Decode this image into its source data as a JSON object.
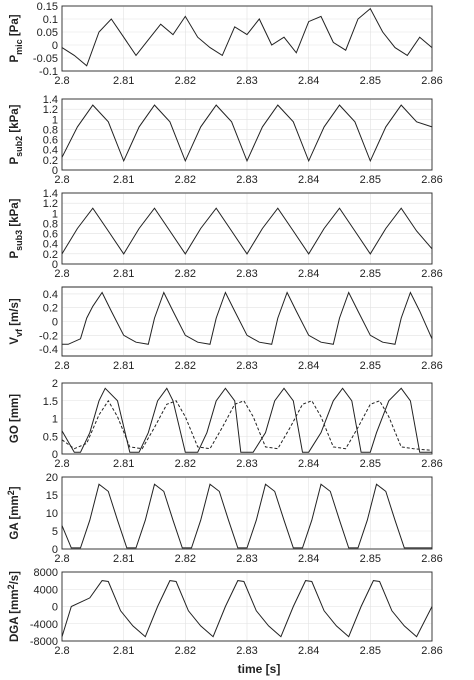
{
  "figure": {
    "xlabel": "time [s]",
    "x_ticks": [
      "2.8",
      "2.81",
      "2.82",
      "2.83",
      "2.84",
      "2.85",
      "2.86"
    ]
  },
  "chart_data": [
    {
      "type": "line",
      "ylabel_main": "P",
      "ylabel_sub": "mic",
      "ylabel_unit": " [Pa]",
      "xlim": [
        2.8,
        2.86
      ],
      "ylim": [
        -0.1,
        0.15
      ],
      "y_ticks": [
        0.15,
        0.1,
        0.05,
        0,
        -0.05,
        -0.1
      ],
      "y_tick_labels": [
        "0.15",
        "0.1",
        "0.05",
        "0",
        "-0.05",
        "-0.1"
      ],
      "grid": true,
      "series": [
        {
          "style": "solid",
          "x": [
            2.8,
            2.802,
            2.804,
            2.806,
            2.808,
            2.81,
            2.812,
            2.814,
            2.816,
            2.818,
            2.82,
            2.822,
            2.824,
            2.826,
            2.828,
            2.83,
            2.832,
            2.834,
            2.836,
            2.838,
            2.84,
            2.842,
            2.844,
            2.846,
            2.848,
            2.85,
            2.852,
            2.854,
            2.856,
            2.858,
            2.86
          ],
          "y": [
            -0.01,
            -0.04,
            -0.08,
            0.05,
            0.1,
            0.03,
            -0.04,
            0.02,
            0.08,
            0.04,
            0.11,
            0.03,
            -0.01,
            -0.04,
            0.07,
            0.04,
            0.1,
            0.0,
            0.03,
            -0.03,
            0.09,
            0.11,
            0.01,
            -0.02,
            0.1,
            0.14,
            0.05,
            -0.01,
            -0.04,
            0.03,
            -0.01
          ]
        }
      ]
    },
    {
      "type": "line",
      "ylabel_main": "P",
      "ylabel_sub": "sub2",
      "ylabel_unit": " [kPa]",
      "xlim": [
        2.8,
        2.86
      ],
      "ylim": [
        0,
        1.4
      ],
      "y_ticks": [
        1.4,
        1.2,
        1,
        0.8,
        0.6,
        0.4,
        0.2,
        0
      ],
      "y_tick_labels": [
        "1.4",
        "1.2",
        "1",
        "0.8",
        "0.6",
        "0.4",
        "0.2",
        "0"
      ],
      "grid": true,
      "series": [
        {
          "style": "solid",
          "x": [
            2.8,
            2.8025,
            2.805,
            2.8075,
            2.81,
            2.8125,
            2.815,
            2.8175,
            2.82,
            2.8225,
            2.825,
            2.8275,
            2.83,
            2.8325,
            2.835,
            2.8375,
            2.84,
            2.8425,
            2.845,
            2.8475,
            2.85,
            2.8525,
            2.855,
            2.8575,
            2.86
          ],
          "y": [
            0.25,
            0.85,
            1.28,
            0.95,
            0.18,
            0.85,
            1.28,
            0.95,
            0.18,
            0.85,
            1.28,
            0.95,
            0.18,
            0.85,
            1.28,
            0.95,
            0.18,
            0.85,
            1.28,
            0.95,
            0.18,
            0.85,
            1.28,
            0.95,
            0.85
          ]
        }
      ]
    },
    {
      "type": "line",
      "ylabel_main": "P",
      "ylabel_sub": "sub3",
      "ylabel_unit": " [kPa]",
      "xlim": [
        2.8,
        2.86
      ],
      "ylim": [
        0,
        1.4
      ],
      "y_ticks": [
        1.4,
        1.2,
        1,
        0.8,
        0.6,
        0.4,
        0.2,
        0
      ],
      "y_tick_labels": [
        "1.4",
        "1.2",
        "1",
        "0.8",
        "0.6",
        "0.4",
        "0.2",
        "0"
      ],
      "grid": true,
      "series": [
        {
          "style": "solid",
          "x": [
            2.8,
            2.8025,
            2.805,
            2.8075,
            2.81,
            2.8125,
            2.815,
            2.8175,
            2.82,
            2.8225,
            2.825,
            2.8275,
            2.83,
            2.8325,
            2.835,
            2.8375,
            2.84,
            2.8425,
            2.845,
            2.8475,
            2.85,
            2.8525,
            2.855,
            2.8575,
            2.86
          ],
          "y": [
            0.2,
            0.7,
            1.1,
            0.65,
            0.2,
            0.7,
            1.1,
            0.65,
            0.2,
            0.7,
            1.1,
            0.65,
            0.2,
            0.7,
            1.1,
            0.65,
            0.2,
            0.7,
            1.1,
            0.65,
            0.2,
            0.7,
            1.1,
            0.65,
            0.3
          ]
        }
      ]
    },
    {
      "type": "line",
      "ylabel_main": "V",
      "ylabel_sub": "vf",
      "ylabel_unit": " [m/s]",
      "xlim": [
        2.8,
        2.86
      ],
      "ylim": [
        -0.5,
        0.5
      ],
      "y_ticks": [
        0.4,
        0.2,
        0,
        -0.2,
        -0.4
      ],
      "y_tick_labels": [
        "0.4",
        "0.2",
        "0",
        "-0.2",
        "-0.4"
      ],
      "grid": true,
      "series": [
        {
          "style": "solid",
          "x": [
            2.8,
            2.801,
            2.803,
            2.804,
            2.805,
            2.8065,
            2.808,
            2.81,
            2.812,
            2.814,
            2.815,
            2.8165,
            2.818,
            2.82,
            2.822,
            2.824,
            2.825,
            2.8265,
            2.828,
            2.83,
            2.832,
            2.834,
            2.835,
            2.8365,
            2.838,
            2.84,
            2.842,
            2.844,
            2.845,
            2.8465,
            2.848,
            2.85,
            2.852,
            2.854,
            2.855,
            2.8565,
            2.858,
            2.86
          ],
          "y": [
            -0.33,
            -0.33,
            -0.25,
            0.05,
            0.22,
            0.42,
            0.15,
            -0.2,
            -0.3,
            -0.33,
            0.05,
            0.42,
            0.15,
            -0.2,
            -0.3,
            -0.33,
            0.05,
            0.42,
            0.15,
            -0.2,
            -0.3,
            -0.33,
            0.05,
            0.42,
            0.15,
            -0.2,
            -0.3,
            -0.33,
            0.05,
            0.42,
            0.15,
            -0.2,
            -0.3,
            -0.33,
            0.05,
            0.42,
            0.15,
            -0.25
          ]
        }
      ]
    },
    {
      "type": "line",
      "ylabel_main": "GO [mm]",
      "ylabel_sub": "",
      "ylabel_unit": "",
      "xlim": [
        2.8,
        2.86
      ],
      "ylim": [
        0,
        2
      ],
      "y_ticks": [
        2,
        1.5,
        1,
        0.5,
        0
      ],
      "y_tick_labels": [
        "2",
        "1.5",
        "1",
        "0.5",
        "0"
      ],
      "grid": true,
      "series": [
        {
          "style": "solid",
          "x": [
            2.8,
            2.802,
            2.803,
            2.8045,
            2.806,
            2.807,
            2.809,
            2.811,
            2.8125,
            2.814,
            2.8155,
            2.817,
            2.818,
            2.82,
            2.822,
            2.8235,
            2.825,
            2.8265,
            2.828,
            2.829,
            2.831,
            2.833,
            2.8345,
            2.836,
            2.8375,
            2.839,
            2.84,
            2.842,
            2.844,
            2.8455,
            2.847,
            2.8485,
            2.85,
            2.851,
            2.853,
            2.855,
            2.8565,
            2.858,
            2.86
          ],
          "y": [
            0.65,
            0.05,
            0.05,
            0.6,
            1.5,
            1.85,
            1.5,
            0.05,
            0.05,
            0.6,
            1.5,
            1.85,
            1.5,
            0.05,
            0.05,
            0.6,
            1.5,
            1.85,
            1.5,
            0.05,
            0.05,
            0.6,
            1.5,
            1.85,
            1.5,
            0.05,
            0.05,
            0.6,
            1.5,
            1.85,
            1.5,
            0.05,
            0.05,
            0.6,
            1.5,
            1.85,
            1.5,
            0.05,
            0.05
          ]
        },
        {
          "style": "dashed",
          "x": [
            2.8,
            2.802,
            2.804,
            2.806,
            2.8075,
            2.809,
            2.811,
            2.813,
            2.815,
            2.817,
            2.8185,
            2.82,
            2.822,
            2.824,
            2.826,
            2.828,
            2.8295,
            2.831,
            2.833,
            2.835,
            2.837,
            2.839,
            2.8405,
            2.842,
            2.844,
            2.846,
            2.848,
            2.85,
            2.8515,
            2.853,
            2.855,
            2.857,
            2.86
          ],
          "y": [
            0.4,
            0.15,
            0.3,
            1.1,
            1.5,
            1.05,
            0.2,
            0.15,
            0.75,
            1.4,
            1.5,
            1.05,
            0.2,
            0.15,
            0.75,
            1.4,
            1.5,
            1.05,
            0.2,
            0.15,
            0.75,
            1.4,
            1.5,
            1.05,
            0.2,
            0.15,
            0.75,
            1.4,
            1.5,
            1.05,
            0.2,
            0.15,
            0.1
          ]
        }
      ]
    },
    {
      "type": "line",
      "ylabel_main": "GA [mm",
      "ylabel_sub": "",
      "ylabel_sup": "2",
      "ylabel_unit": "]",
      "xlim": [
        2.8,
        2.86
      ],
      "ylim": [
        0,
        20
      ],
      "y_ticks": [
        20,
        15,
        10,
        5,
        0
      ],
      "y_tick_labels": [
        "20",
        "15",
        "10",
        "5",
        "0"
      ],
      "grid": true,
      "series": [
        {
          "style": "solid",
          "x": [
            2.8,
            2.8015,
            2.803,
            2.8045,
            2.806,
            2.8075,
            2.809,
            2.8105,
            2.812,
            2.8135,
            2.815,
            2.8165,
            2.818,
            2.8195,
            2.821,
            2.8225,
            2.824,
            2.8255,
            2.827,
            2.8285,
            2.83,
            2.8315,
            2.833,
            2.8345,
            2.836,
            2.8375,
            2.839,
            2.8405,
            2.842,
            2.8435,
            2.845,
            2.8465,
            2.848,
            2.8495,
            2.851,
            2.8525,
            2.854,
            2.8555,
            2.857,
            2.8585,
            2.86
          ],
          "y": [
            6.5,
            0.3,
            0.3,
            8,
            18,
            16,
            8,
            0.3,
            0.3,
            8,
            18,
            16,
            8,
            0.3,
            0.3,
            8,
            18,
            16,
            8,
            0.3,
            0.3,
            8,
            18,
            16,
            8,
            0.3,
            0.3,
            8,
            18,
            16,
            8,
            0.3,
            0.3,
            8,
            18,
            16,
            8,
            0.3,
            0.3,
            0.3,
            0.3
          ]
        }
      ]
    },
    {
      "type": "line",
      "ylabel_main": "DGA [mm",
      "ylabel_sub": "",
      "ylabel_sup": "2",
      "ylabel_unit": "/s]",
      "xlim": [
        2.8,
        2.86
      ],
      "ylim": [
        -8000,
        8000
      ],
      "y_ticks": [
        8000,
        4000,
        0,
        -4000,
        -8000
      ],
      "y_tick_labels": [
        "8000",
        "4000",
        "0",
        "-4000",
        "-8000"
      ],
      "grid": true,
      "series": [
        {
          "style": "solid",
          "x": [
            2.8,
            2.8015,
            2.8045,
            2.8065,
            2.8075,
            2.8095,
            2.8115,
            2.8135,
            2.8155,
            2.8175,
            2.8185,
            2.8205,
            2.8225,
            2.8245,
            2.8265,
            2.8285,
            2.8295,
            2.8315,
            2.8335,
            2.8355,
            2.8375,
            2.8395,
            2.8405,
            2.8425,
            2.8445,
            2.8465,
            2.8485,
            2.8505,
            2.8515,
            2.8535,
            2.8555,
            2.8575,
            2.86
          ],
          "y": [
            -7000,
            0,
            2000,
            6000,
            5800,
            -1000,
            -4500,
            -7000,
            0,
            6000,
            5800,
            -1000,
            -4500,
            -7000,
            0,
            6000,
            5800,
            -1000,
            -4500,
            -7000,
            0,
            6000,
            5800,
            -1000,
            -4500,
            -7000,
            0,
            6000,
            5800,
            -1000,
            -4500,
            -7000,
            0
          ]
        }
      ]
    }
  ]
}
